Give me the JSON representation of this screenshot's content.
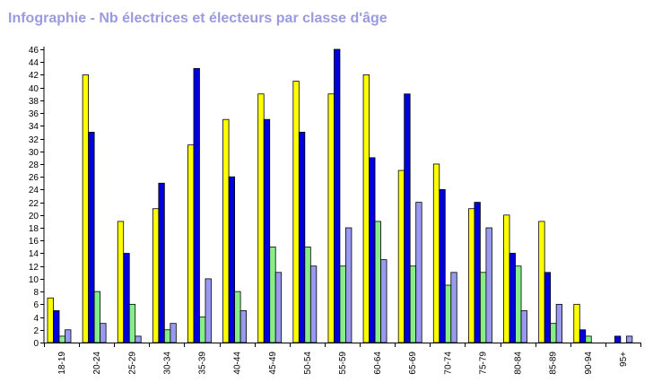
{
  "chart_data": {
    "type": "bar",
    "title": "Infographie - Nb électrices et électeurs par classe d'âge",
    "xlabel": "",
    "ylabel": "",
    "ylim": [
      0,
      46
    ],
    "ytick_step": 2,
    "grid": false,
    "legend": "none",
    "categories": [
      "18-19",
      "20-24",
      "25-29",
      "30-34",
      "35-39",
      "40-44",
      "45-49",
      "50-54",
      "55-59",
      "60-64",
      "65-69",
      "70-74",
      "75-79",
      "80-84",
      "85-89",
      "90-94",
      "95+"
    ],
    "series": [
      {
        "color": "#ffff00",
        "values": [
          7,
          42,
          19,
          21,
          31,
          35,
          39,
          41,
          39,
          42,
          27,
          28,
          21,
          20,
          19,
          6,
          0
        ]
      },
      {
        "color": "#0000dd",
        "values": [
          5,
          33,
          14,
          25,
          43,
          26,
          35,
          33,
          46,
          29,
          39,
          24,
          22,
          14,
          11,
          2,
          1
        ]
      },
      {
        "color": "#88ee88",
        "values": [
          1,
          8,
          6,
          2,
          4,
          8,
          15,
          15,
          12,
          19,
          12,
          9,
          11,
          12,
          3,
          1,
          0
        ]
      },
      {
        "color": "#9999ee",
        "values": [
          2,
          3,
          1,
          3,
          10,
          5,
          11,
          12,
          18,
          13,
          22,
          11,
          18,
          5,
          6,
          0,
          1
        ]
      }
    ]
  }
}
